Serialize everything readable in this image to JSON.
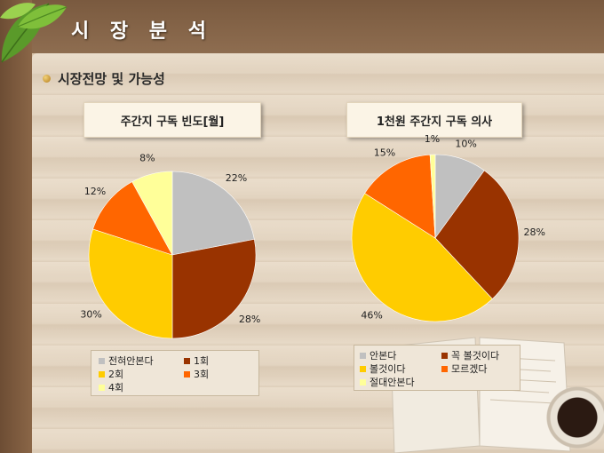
{
  "slide": {
    "title": "시 장 분 석",
    "subtitle": "시장전망 및 가능성"
  },
  "colors": {
    "gray": "#C0C0C0",
    "brown": "#993300",
    "gold": "#FFCC00",
    "orange": "#FF6600",
    "cream": "#FFFF99"
  },
  "chart_data": [
    {
      "type": "pie",
      "title": "주간지 구독 빈도[월]",
      "series": [
        {
          "name": "전혀안본다",
          "value": 22,
          "label": "22%",
          "color": "#C0C0C0"
        },
        {
          "name": "1회",
          "value": 28,
          "label": "28%",
          "color": "#993300"
        },
        {
          "name": "2회",
          "value": 30,
          "label": "30%",
          "color": "#FFCC00"
        },
        {
          "name": "3회",
          "value": 12,
          "label": "12%",
          "color": "#FF6600"
        },
        {
          "name": "4회",
          "value": 8,
          "label": "8%",
          "color": "#FFFF99"
        }
      ],
      "legend_position": "bottom"
    },
    {
      "type": "pie",
      "title": "1천원 주간지 구독 의사",
      "series": [
        {
          "name": "안본다",
          "value": 10,
          "label": "10%",
          "color": "#C0C0C0"
        },
        {
          "name": "꼭 볼것이다",
          "value": 28,
          "label": "28%",
          "color": "#993300"
        },
        {
          "name": "볼것이다",
          "value": 46,
          "label": "46%",
          "color": "#FFCC00"
        },
        {
          "name": "모르겠다",
          "value": 15,
          "label": "15%",
          "color": "#FF6600"
        },
        {
          "name": "절대안본다",
          "value": 1,
          "label": "1%",
          "color": "#FFFF99"
        }
      ],
      "legend_position": "bottom"
    }
  ]
}
